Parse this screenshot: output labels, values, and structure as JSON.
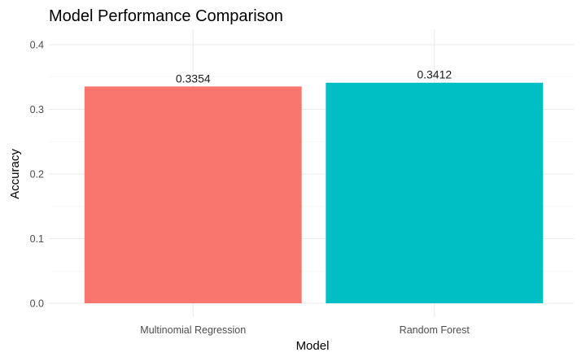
{
  "chart_data": {
    "type": "bar",
    "title": "Model Performance Comparison",
    "xlabel": "Model",
    "ylabel": "Accuracy",
    "categories": [
      "Multinomial Regression",
      "Random Forest"
    ],
    "values": [
      0.3354,
      0.3412
    ],
    "value_labels": [
      "0.3354",
      "0.3412"
    ],
    "bar_colors": [
      "#F8766D",
      "#00BFC4"
    ],
    "ylim": [
      0,
      0.42
    ],
    "yticks": [
      0.0,
      0.1,
      0.2,
      0.3,
      0.4
    ],
    "ytick_labels": [
      "0.0",
      "0.1",
      "0.2",
      "0.3",
      "0.4"
    ],
    "grid": true,
    "legend": "none"
  }
}
